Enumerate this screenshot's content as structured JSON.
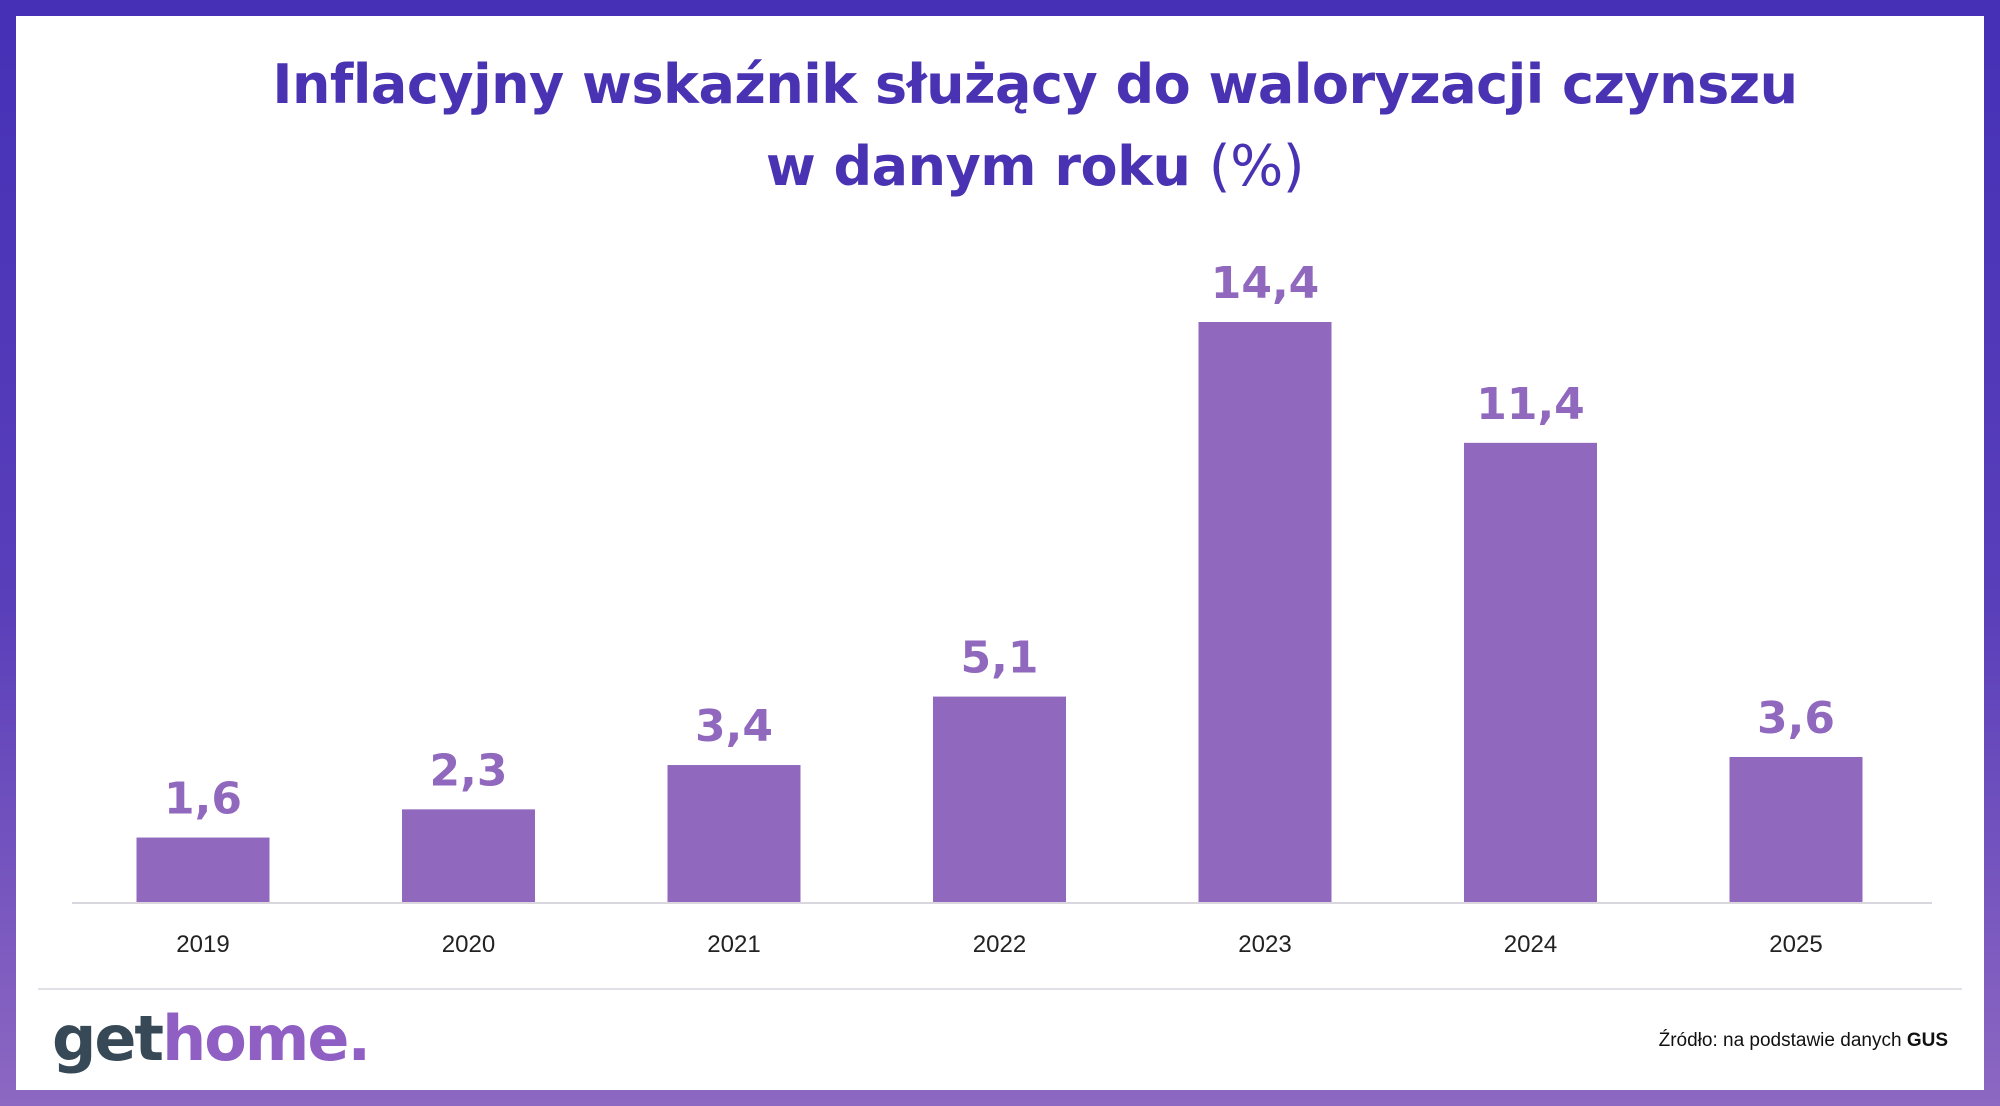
{
  "title": {
    "line1": "Inflacyjny wskaźnik służący do waloryzacji czynszu",
    "line2_main": "w danym roku",
    "line2_unit": "(%)"
  },
  "chart_data": {
    "type": "bar",
    "categories": [
      "2019",
      "2020",
      "2021",
      "2022",
      "2023",
      "2024",
      "2025"
    ],
    "values": [
      1.6,
      2.3,
      3.4,
      5.1,
      14.4,
      11.4,
      3.6
    ],
    "value_labels": [
      "1,6",
      "2,3",
      "3,4",
      "5,1",
      "14,4",
      "11,4",
      "3,6"
    ],
    "title": "Inflacyjny wskaźnik służący do waloryzacji czynszu w danym roku (%)",
    "xlabel": "",
    "ylabel": "",
    "ylim": [
      0,
      14.4
    ],
    "grid": false,
    "bar_color": "#9068bd",
    "label_color": "#9068bd"
  },
  "logo": {
    "part1": "get",
    "part2": "home."
  },
  "source": {
    "prefix": "Źródło: na podstawie danych ",
    "name": "GUS"
  },
  "colors": {
    "frame": "#4a33b6",
    "title": "#4a33b3",
    "bar": "#9068bd",
    "logo_dark": "#374957",
    "logo_accent": "#8f5fc4"
  }
}
